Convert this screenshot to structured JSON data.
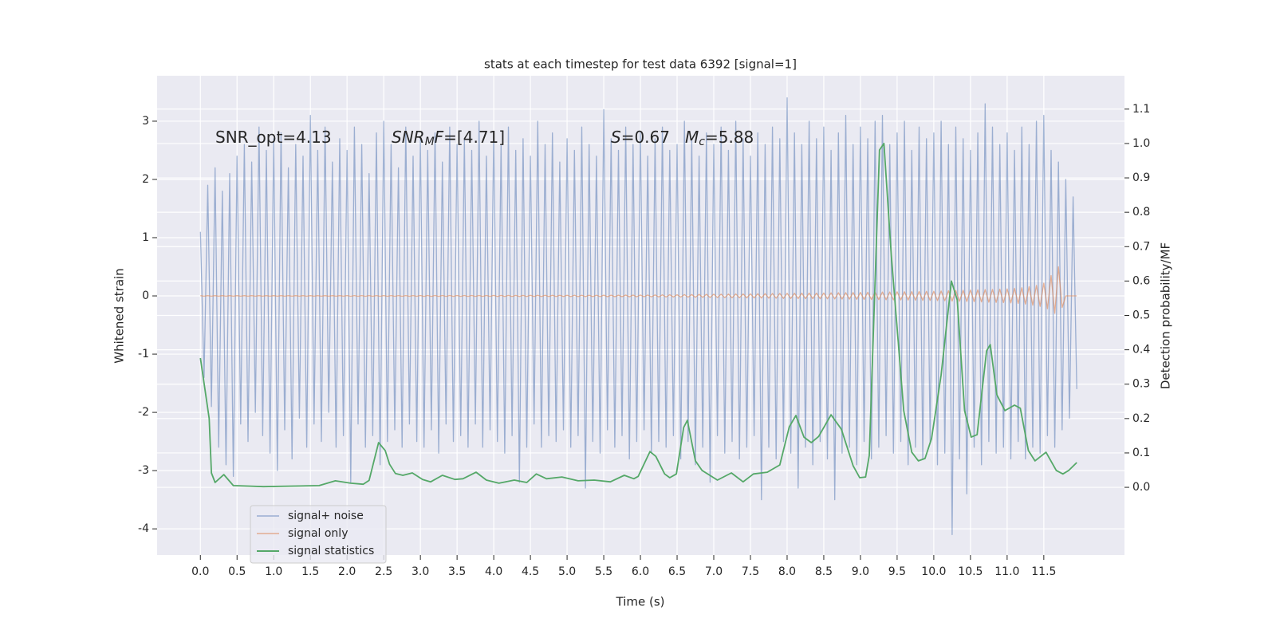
{
  "chart_data": {
    "type": "line",
    "title": "stats at each timestep for test data 6392 [signal=1]",
    "xlabel": "Time (s)",
    "ylabel": "Whitened strain",
    "y2label": "Detection probability/MF",
    "annotations": [
      [
        "SNR_opt=4.13"
      ],
      [
        "SNR",
        "M",
        "F",
        "=[4.71]"
      ],
      [
        "S",
        "=0.67"
      ],
      [
        "M",
        "c",
        "=5.88"
      ]
    ],
    "xlim": [
      -0.59,
      12.6
    ],
    "ylim": [
      -4.45,
      3.78
    ],
    "y2lim": [
      -0.197,
      1.197
    ],
    "xticks": [
      {
        "value": 0,
        "label": "0.0"
      },
      0.5,
      {
        "value": 1,
        "label": "1.0"
      },
      1.5,
      {
        "value": 2,
        "label": "2.0"
      },
      2.5,
      {
        "value": 3,
        "label": "3.0"
      },
      3.5,
      {
        "value": 4,
        "label": "4.0"
      },
      4.5,
      {
        "value": 5,
        "label": "5.0"
      },
      5.5,
      {
        "value": 6,
        "label": "6.0"
      },
      6.5,
      {
        "value": 7,
        "label": "7.0"
      },
      7.5,
      {
        "value": 8,
        "label": "8.0"
      },
      8.5,
      {
        "value": 9,
        "label": "9.0"
      },
      9.5,
      {
        "value": 10,
        "label": "10.0"
      },
      10.5,
      {
        "value": 11,
        "label": "11.0"
      },
      11.5
    ],
    "yticks": [
      -4,
      -3,
      -2,
      -1,
      0,
      1,
      2,
      3
    ],
    "y2ticks": [
      {
        "value": 0,
        "label": "0.0"
      },
      0.1,
      0.2,
      0.3,
      0.4,
      0.5,
      0.6,
      0.7,
      0.8,
      0.9,
      {
        "value": 1,
        "label": "1.0"
      },
      1.1
    ],
    "grid": true,
    "legend": "lower left",
    "x": [
      0,
      0.05,
      0.1,
      0.15,
      0.2,
      0.25,
      0.3,
      0.35,
      0.4,
      0.45,
      0.5,
      0.55,
      0.6,
      0.65,
      0.7,
      0.75,
      0.8,
      0.85,
      0.9,
      0.95,
      1,
      1.05,
      1.1,
      1.15,
      1.2,
      1.25,
      1.3,
      1.35,
      1.4,
      1.45,
      1.5,
      1.55,
      1.6,
      1.65,
      1.7,
      1.75,
      1.8,
      1.85,
      1.9,
      1.95,
      2,
      2.05,
      2.1,
      2.15,
      2.2,
      2.25,
      2.3,
      2.35,
      2.4,
      2.45,
      2.5,
      2.55,
      2.6,
      2.65,
      2.7,
      2.75,
      2.8,
      2.85,
      2.9,
      2.95,
      3,
      3.05,
      3.1,
      3.15,
      3.2,
      3.25,
      3.3,
      3.35,
      3.4,
      3.45,
      3.5,
      3.55,
      3.6,
      3.65,
      3.7,
      3.75,
      3.8,
      3.85,
      3.9,
      3.95,
      4,
      4.05,
      4.1,
      4.15,
      4.2,
      4.25,
      4.3,
      4.35,
      4.4,
      4.45,
      4.5,
      4.55,
      4.6,
      4.65,
      4.7,
      4.75,
      4.8,
      4.85,
      4.9,
      4.95,
      5,
      5.05,
      5.1,
      5.15,
      5.2,
      5.25,
      5.3,
      5.35,
      5.4,
      5.45,
      5.5,
      5.55,
      5.6,
      5.65,
      5.7,
      5.75,
      5.8,
      5.85,
      5.9,
      5.95,
      6,
      6.05,
      6.1,
      6.15,
      6.2,
      6.25,
      6.3,
      6.35,
      6.4,
      6.45,
      6.5,
      6.55,
      6.6,
      6.65,
      6.7,
      6.75,
      6.8,
      6.85,
      6.9,
      6.95,
      7,
      7.05,
      7.1,
      7.15,
      7.2,
      7.25,
      7.3,
      7.35,
      7.4,
      7.45,
      7.5,
      7.55,
      7.6,
      7.65,
      7.7,
      7.75,
      7.8,
      7.85,
      7.9,
      7.95,
      8,
      8.05,
      8.1,
      8.15,
      8.2,
      8.25,
      8.3,
      8.35,
      8.4,
      8.45,
      8.5,
      8.55,
      8.6,
      8.65,
      8.7,
      8.75,
      8.8,
      8.85,
      8.9,
      8.95,
      9,
      9.05,
      9.1,
      9.15,
      9.2,
      9.25,
      9.3,
      9.35,
      9.4,
      9.45,
      9.5,
      9.55,
      9.6,
      9.65,
      9.7,
      9.75,
      9.8,
      9.85,
      9.9,
      9.95,
      10,
      10.05,
      10.1,
      10.15,
      10.2,
      10.25,
      10.3,
      10.35,
      10.4,
      10.45,
      10.5,
      10.55,
      10.6,
      10.65,
      10.7,
      10.75,
      10.8,
      10.85,
      10.9,
      10.95,
      11,
      11.05,
      11.1,
      11.15,
      11.2,
      11.25,
      11.3,
      11.35,
      11.4,
      11.45,
      11.5,
      11.55,
      11.6,
      11.65,
      11.7,
      11.75,
      11.8,
      11.85,
      11.9,
      11.95
    ],
    "series": [
      {
        "name": "signal+ noise",
        "color": "#4c72b0",
        "values": [
          1.1,
          -1.4,
          1.9,
          -1.9,
          2.2,
          -2.6,
          1.8,
          -2.9,
          2.1,
          -3.1,
          2.4,
          -2.2,
          2.6,
          -2.5,
          2.3,
          -2.0,
          2.9,
          -2.4,
          2.5,
          -2.7,
          2.7,
          -3.0,
          2.8,
          -2.3,
          2.2,
          -2.8,
          2.6,
          -2.1,
          2.4,
          -2.6,
          3.1,
          -2.2,
          2.5,
          -2.5,
          2.9,
          -2.0,
          2.3,
          -2.6,
          2.7,
          -2.4,
          2.5,
          -3.2,
          2.9,
          -2.2,
          2.6,
          -2.6,
          2.1,
          -2.4,
          2.8,
          -2.9,
          3.0,
          -2.5,
          2.6,
          -2.3,
          2.2,
          -2.6,
          2.9,
          -2.2,
          2.4,
          -2.5,
          2.7,
          -2.6,
          2.5,
          -2.3,
          2.8,
          -2.7,
          2.3,
          -2.2,
          2.9,
          -2.5,
          2.6,
          -2.4,
          2.7,
          -2.6,
          2.5,
          -2.2,
          3.0,
          -2.6,
          2.4,
          -2.3,
          2.8,
          -2.5,
          2.6,
          -2.7,
          2.9,
          -2.4,
          2.5,
          -3.2,
          2.7,
          -2.6,
          2.4,
          -2.2,
          3.0,
          -2.6,
          2.6,
          -2.4,
          2.8,
          -2.5,
          2.3,
          -2.3,
          2.7,
          -2.6,
          2.5,
          -2.4,
          2.9,
          -3.3,
          2.6,
          -2.5,
          2.4,
          -2.7,
          3.2,
          -2.3,
          2.7,
          -2.6,
          2.5,
          -2.4,
          2.9,
          -2.8,
          2.6,
          -2.5,
          2.8,
          -2.3,
          2.4,
          -2.7,
          2.7,
          -2.5,
          2.9,
          -2.6,
          2.5,
          -2.4,
          2.6,
          -2.8,
          3.0,
          -2.5,
          2.7,
          -2.9,
          2.4,
          -2.6,
          2.8,
          -3.2,
          2.6,
          -2.4,
          2.9,
          -2.7,
          2.5,
          -2.5,
          3.0,
          -2.8,
          2.7,
          -2.6,
          2.4,
          -2.4,
          2.8,
          -3.5,
          2.6,
          -2.6,
          2.9,
          -2.8,
          2.7,
          -2.5,
          3.4,
          -2.7,
          2.8,
          -3.3,
          2.6,
          -2.6,
          3.0,
          -2.9,
          2.7,
          -2.5,
          2.9,
          -2.8,
          2.5,
          -3.5,
          2.8,
          -2.7,
          3.1,
          -2.6,
          2.6,
          -2.9,
          2.9,
          -2.5,
          2.7,
          -2.8,
          3.0,
          -2.6,
          3.1,
          -2.4,
          2.6,
          -2.7,
          2.8,
          -2.5,
          3.0,
          -2.9,
          2.5,
          -2.6,
          2.9,
          -2.8,
          2.7,
          -2.5,
          2.8,
          -2.9,
          3.0,
          -2.7,
          2.6,
          -4.1,
          2.9,
          -2.8,
          2.7,
          -3.4,
          2.5,
          -2.6,
          2.8,
          -2.9,
          3.3,
          -2.5,
          2.9,
          -2.7,
          2.6,
          -2.6,
          2.8,
          -2.8,
          2.5,
          -2.5,
          2.9,
          -2.8,
          2.6,
          -2.6,
          3.0,
          -2.7,
          3.1,
          -2.4,
          2.5,
          -2.6,
          2.3,
          -2.3,
          2.0,
          -2.1,
          1.7,
          -1.6
        ]
      },
      {
        "name": "signal only",
        "color": "#dd8452",
        "values": [
          0.005,
          -0.005,
          0.005,
          -0.005,
          0.005,
          -0.005,
          0.005,
          -0.005,
          0.005,
          -0.005,
          0.005,
          -0.005,
          0.005,
          -0.005,
          0.005,
          -0.005,
          0.005,
          -0.005,
          0.005,
          -0.005,
          0.005,
          -0.005,
          0.005,
          -0.005,
          0.005,
          -0.005,
          0.005,
          -0.005,
          0.005,
          -0.005,
          0.005,
          -0.005,
          0.005,
          -0.005,
          0.005,
          -0.005,
          0.005,
          -0.005,
          0.005,
          -0.005,
          0.006,
          -0.006,
          0.006,
          -0.006,
          0.006,
          -0.006,
          0.006,
          -0.006,
          0.006,
          -0.006,
          0.006,
          -0.006,
          0.006,
          -0.006,
          0.006,
          -0.006,
          0.006,
          -0.006,
          0.006,
          -0.006,
          0.008,
          -0.008,
          0.008,
          -0.008,
          0.008,
          -0.008,
          0.008,
          -0.008,
          0.008,
          -0.008,
          0.008,
          -0.008,
          0.008,
          -0.008,
          0.008,
          -0.008,
          0.008,
          -0.008,
          0.008,
          -0.008,
          0.009,
          -0.009,
          0.009,
          -0.009,
          0.009,
          -0.009,
          0.009,
          -0.009,
          0.009,
          -0.009,
          0.01,
          -0.01,
          0.01,
          -0.01,
          0.01,
          -0.01,
          0.01,
          -0.01,
          0.01,
          -0.01,
          0.012,
          -0.012,
          0.012,
          -0.012,
          0.012,
          -0.012,
          0.012,
          -0.012,
          0.012,
          -0.012,
          0.013,
          -0.013,
          0.013,
          -0.013,
          0.013,
          -0.013,
          0.014,
          -0.014,
          0.014,
          -0.014,
          0.015,
          -0.015,
          0.016,
          -0.016,
          0.017,
          -0.017,
          0.018,
          -0.018,
          0.019,
          -0.019,
          0.02,
          -0.02,
          0.022,
          -0.022,
          0.024,
          -0.024,
          0.026,
          -0.026,
          0.028,
          -0.028,
          0.03,
          -0.03,
          0.031,
          -0.031,
          0.032,
          -0.032,
          0.033,
          -0.033,
          0.034,
          -0.034,
          0.035,
          -0.035,
          0.037,
          -0.037,
          0.039,
          -0.039,
          0.041,
          -0.041,
          0.043,
          -0.043,
          0.045,
          -0.045,
          0.046,
          -0.046,
          0.047,
          -0.047,
          0.048,
          -0.048,
          0.049,
          -0.049,
          0.05,
          -0.05,
          0.052,
          -0.052,
          0.054,
          -0.054,
          0.056,
          -0.056,
          0.058,
          -0.058,
          0.06,
          -0.06,
          0.062,
          -0.062,
          0.064,
          -0.064,
          0.066,
          -0.066,
          0.068,
          -0.068,
          0.07,
          -0.07,
          0.072,
          -0.072,
          0.074,
          -0.074,
          0.076,
          -0.076,
          0.078,
          -0.078,
          0.08,
          -0.08,
          0.084,
          -0.084,
          0.088,
          -0.088,
          0.092,
          -0.092,
          0.096,
          -0.096,
          0.1,
          -0.1,
          0.104,
          -0.104,
          0.108,
          -0.108,
          0.112,
          -0.112,
          0.116,
          -0.116,
          0.12,
          -0.12,
          0.13,
          -0.13,
          0.14,
          -0.14,
          0.16,
          -0.16,
          0.18,
          -0.18,
          0.22,
          -0.22,
          0.35,
          -0.3,
          0.5,
          -0.2,
          0,
          0,
          0,
          0
        ]
      },
      {
        "name": "signal statistics",
        "color": "#55a868",
        "axis": "y2",
        "x": [
          0,
          0.12,
          0.15,
          0.2,
          0.32,
          0.45,
          0.86,
          1.62,
          1.84,
          2.05,
          2.22,
          2.3,
          2.43,
          2.52,
          2.58,
          2.66,
          2.76,
          2.89,
          3.03,
          3.14,
          3.3,
          3.47,
          3.58,
          3.76,
          3.9,
          4.07,
          4.28,
          4.45,
          4.58,
          4.72,
          4.93,
          5.15,
          5.37,
          5.59,
          5.78,
          5.91,
          5.97,
          6.13,
          6.21,
          6.33,
          6.4,
          6.49,
          6.59,
          6.64,
          6.75,
          6.84,
          7.05,
          7.24,
          7.4,
          7.54,
          7.73,
          7.9,
          8.03,
          8.12,
          8.23,
          8.33,
          8.43,
          8.6,
          8.74,
          8.9,
          8.99,
          9.07,
          9.12,
          9.26,
          9.32,
          9.42,
          9.59,
          9.7,
          9.79,
          9.88,
          9.97,
          10.1,
          10.24,
          10.32,
          10.42,
          10.51,
          10.59,
          10.72,
          10.77,
          10.86,
          10.97,
          11.1,
          11.18,
          11.29,
          11.38,
          11.53,
          11.67,
          11.76,
          11.84,
          11.95
        ],
        "values": [
          0.376,
          0.2,
          0.042,
          0.014,
          0.037,
          0.005,
          0.002,
          0.005,
          0.019,
          0.012,
          0.009,
          0.02,
          0.13,
          0.107,
          0.067,
          0.04,
          0.035,
          0.042,
          0.023,
          0.016,
          0.035,
          0.023,
          0.025,
          0.044,
          0.021,
          0.012,
          0.021,
          0.014,
          0.039,
          0.025,
          0.03,
          0.019,
          0.021,
          0.016,
          0.035,
          0.025,
          0.032,
          0.104,
          0.09,
          0.039,
          0.028,
          0.039,
          0.174,
          0.195,
          0.077,
          0.049,
          0.021,
          0.042,
          0.016,
          0.039,
          0.044,
          0.065,
          0.176,
          0.209,
          0.146,
          0.13,
          0.148,
          0.211,
          0.169,
          0.063,
          0.028,
          0.03,
          0.093,
          0.981,
          1.0,
          0.675,
          0.223,
          0.102,
          0.077,
          0.084,
          0.142,
          0.327,
          0.6,
          0.545,
          0.223,
          0.146,
          0.153,
          0.397,
          0.415,
          0.269,
          0.223,
          0.239,
          0.23,
          0.107,
          0.077,
          0.102,
          0.049,
          0.039,
          0.049,
          0.072
        ]
      }
    ]
  }
}
